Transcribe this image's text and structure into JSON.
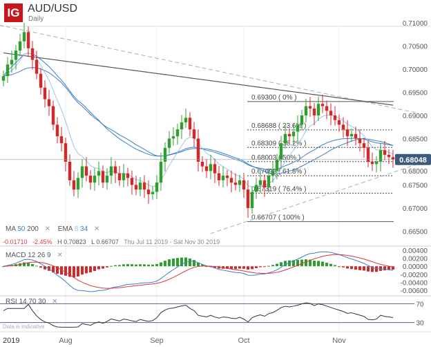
{
  "header": {
    "logo": "IG",
    "title": "AUD/USD",
    "subtitle": "Daily"
  },
  "legend": {
    "ma_label": "MA",
    "ma_periods": [
      "50",
      "200"
    ],
    "ema_label": "EMA",
    "ema_periods": [
      "8",
      "34"
    ],
    "change": "-0.01710",
    "change_pct": "-2.45%",
    "high": "H 0.70823",
    "low": "L 0.66707",
    "range": "Thu Jul 11 2019 - Sat Nov 30 2019",
    "macd_label": "MACD",
    "macd_params": [
      "12",
      "26",
      "9"
    ],
    "rsi_label": "RSI",
    "rsi_params": [
      "14",
      "70",
      "30"
    ],
    "close_icon": "x-icon"
  },
  "note": "Data is indicative",
  "colors": {
    "up": "#2ca02c",
    "down": "#d62728",
    "ma50": "#3b7fc4",
    "ma200": "#555555",
    "ema8": "#9cc3e6",
    "ema34": "#3b7fc4",
    "price_box": "#3e5a7a",
    "trend": "#8fb3d9"
  },
  "chart_data": {
    "type": "candlestick",
    "start_date": "2019-07-11",
    "closes": [
      0.6985,
      0.701,
      0.702,
      0.704,
      0.706,
      0.708,
      0.7045,
      0.702,
      0.699,
      0.696,
      0.6935,
      0.692,
      0.688,
      0.6855,
      0.684,
      0.68,
      0.676,
      0.674,
      0.6765,
      0.679,
      0.677,
      0.6755,
      0.677,
      0.678,
      0.6755,
      0.677,
      0.679,
      0.6775,
      0.676,
      0.6775,
      0.6765,
      0.675,
      0.674,
      0.6755,
      0.674,
      0.673,
      0.6735,
      0.6755,
      0.68,
      0.683,
      0.685,
      0.6855,
      0.687,
      0.6885,
      0.6895,
      0.687,
      0.685,
      0.68,
      0.679,
      0.678,
      0.6795,
      0.6775,
      0.676,
      0.677,
      0.6765,
      0.6755,
      0.675,
      0.676,
      0.674,
      0.67,
      0.6735,
      0.675,
      0.676,
      0.6745,
      0.677,
      0.678,
      0.6805,
      0.684,
      0.686,
      0.6855,
      0.6865,
      0.688,
      0.69,
      0.692,
      0.6915,
      0.69,
      0.6925,
      0.692,
      0.691,
      0.69,
      0.689,
      0.688,
      0.687,
      0.6855,
      0.686,
      0.685,
      0.684,
      0.683,
      0.68,
      0.6795,
      0.68,
      0.6825,
      0.6815,
      0.681,
      0.6805
    ],
    "price_ylim": [
      0.665,
      0.712
    ],
    "price_ticks": [
      "0.71000",
      "0.70500",
      "0.70000",
      "0.69500",
      "0.69000",
      "0.68500",
      "0.68000",
      "0.67500",
      "0.67000",
      "0.66500"
    ],
    "last_price": "0.68048",
    "x_ticks": [
      {
        "label": "2019",
        "index": -1
      },
      {
        "label": "Aug",
        "index": 15
      },
      {
        "label": "Sep",
        "index": 37
      },
      {
        "label": "Oct",
        "index": 58
      },
      {
        "label": "Nov",
        "index": 81
      }
    ],
    "fib_levels": [
      {
        "label": "0.69300 ( 0% )",
        "price": 0.693
      },
      {
        "label": "0.68688 ( 23.6% )",
        "price": 0.68688
      },
      {
        "label": "0.68309 ( 38.2% )",
        "price": 0.68309
      },
      {
        "label": "0.68003 ( 50% )",
        "price": 0.68003
      },
      {
        "label": "0.67698 ( 61.8% )",
        "price": 0.67698
      },
      {
        "label": "0.67319 ( 76.4% )",
        "price": 0.67319
      },
      {
        "label": "0.66707 ( 100% )",
        "price": 0.66707
      }
    ],
    "trendlines": [
      {
        "from": [
          -1,
          0.7095
        ],
        "to": [
          100,
          0.6905
        ]
      },
      {
        "from": [
          50,
          0.6645
        ],
        "to": [
          100,
          0.6795
        ]
      }
    ],
    "macd_ticks": [
      "0.00400",
      "0.00200",
      "0.00000",
      "-0.00200",
      "-0.00400",
      "-0.00600"
    ],
    "rsi_levels": [
      "70",
      "30"
    ]
  }
}
